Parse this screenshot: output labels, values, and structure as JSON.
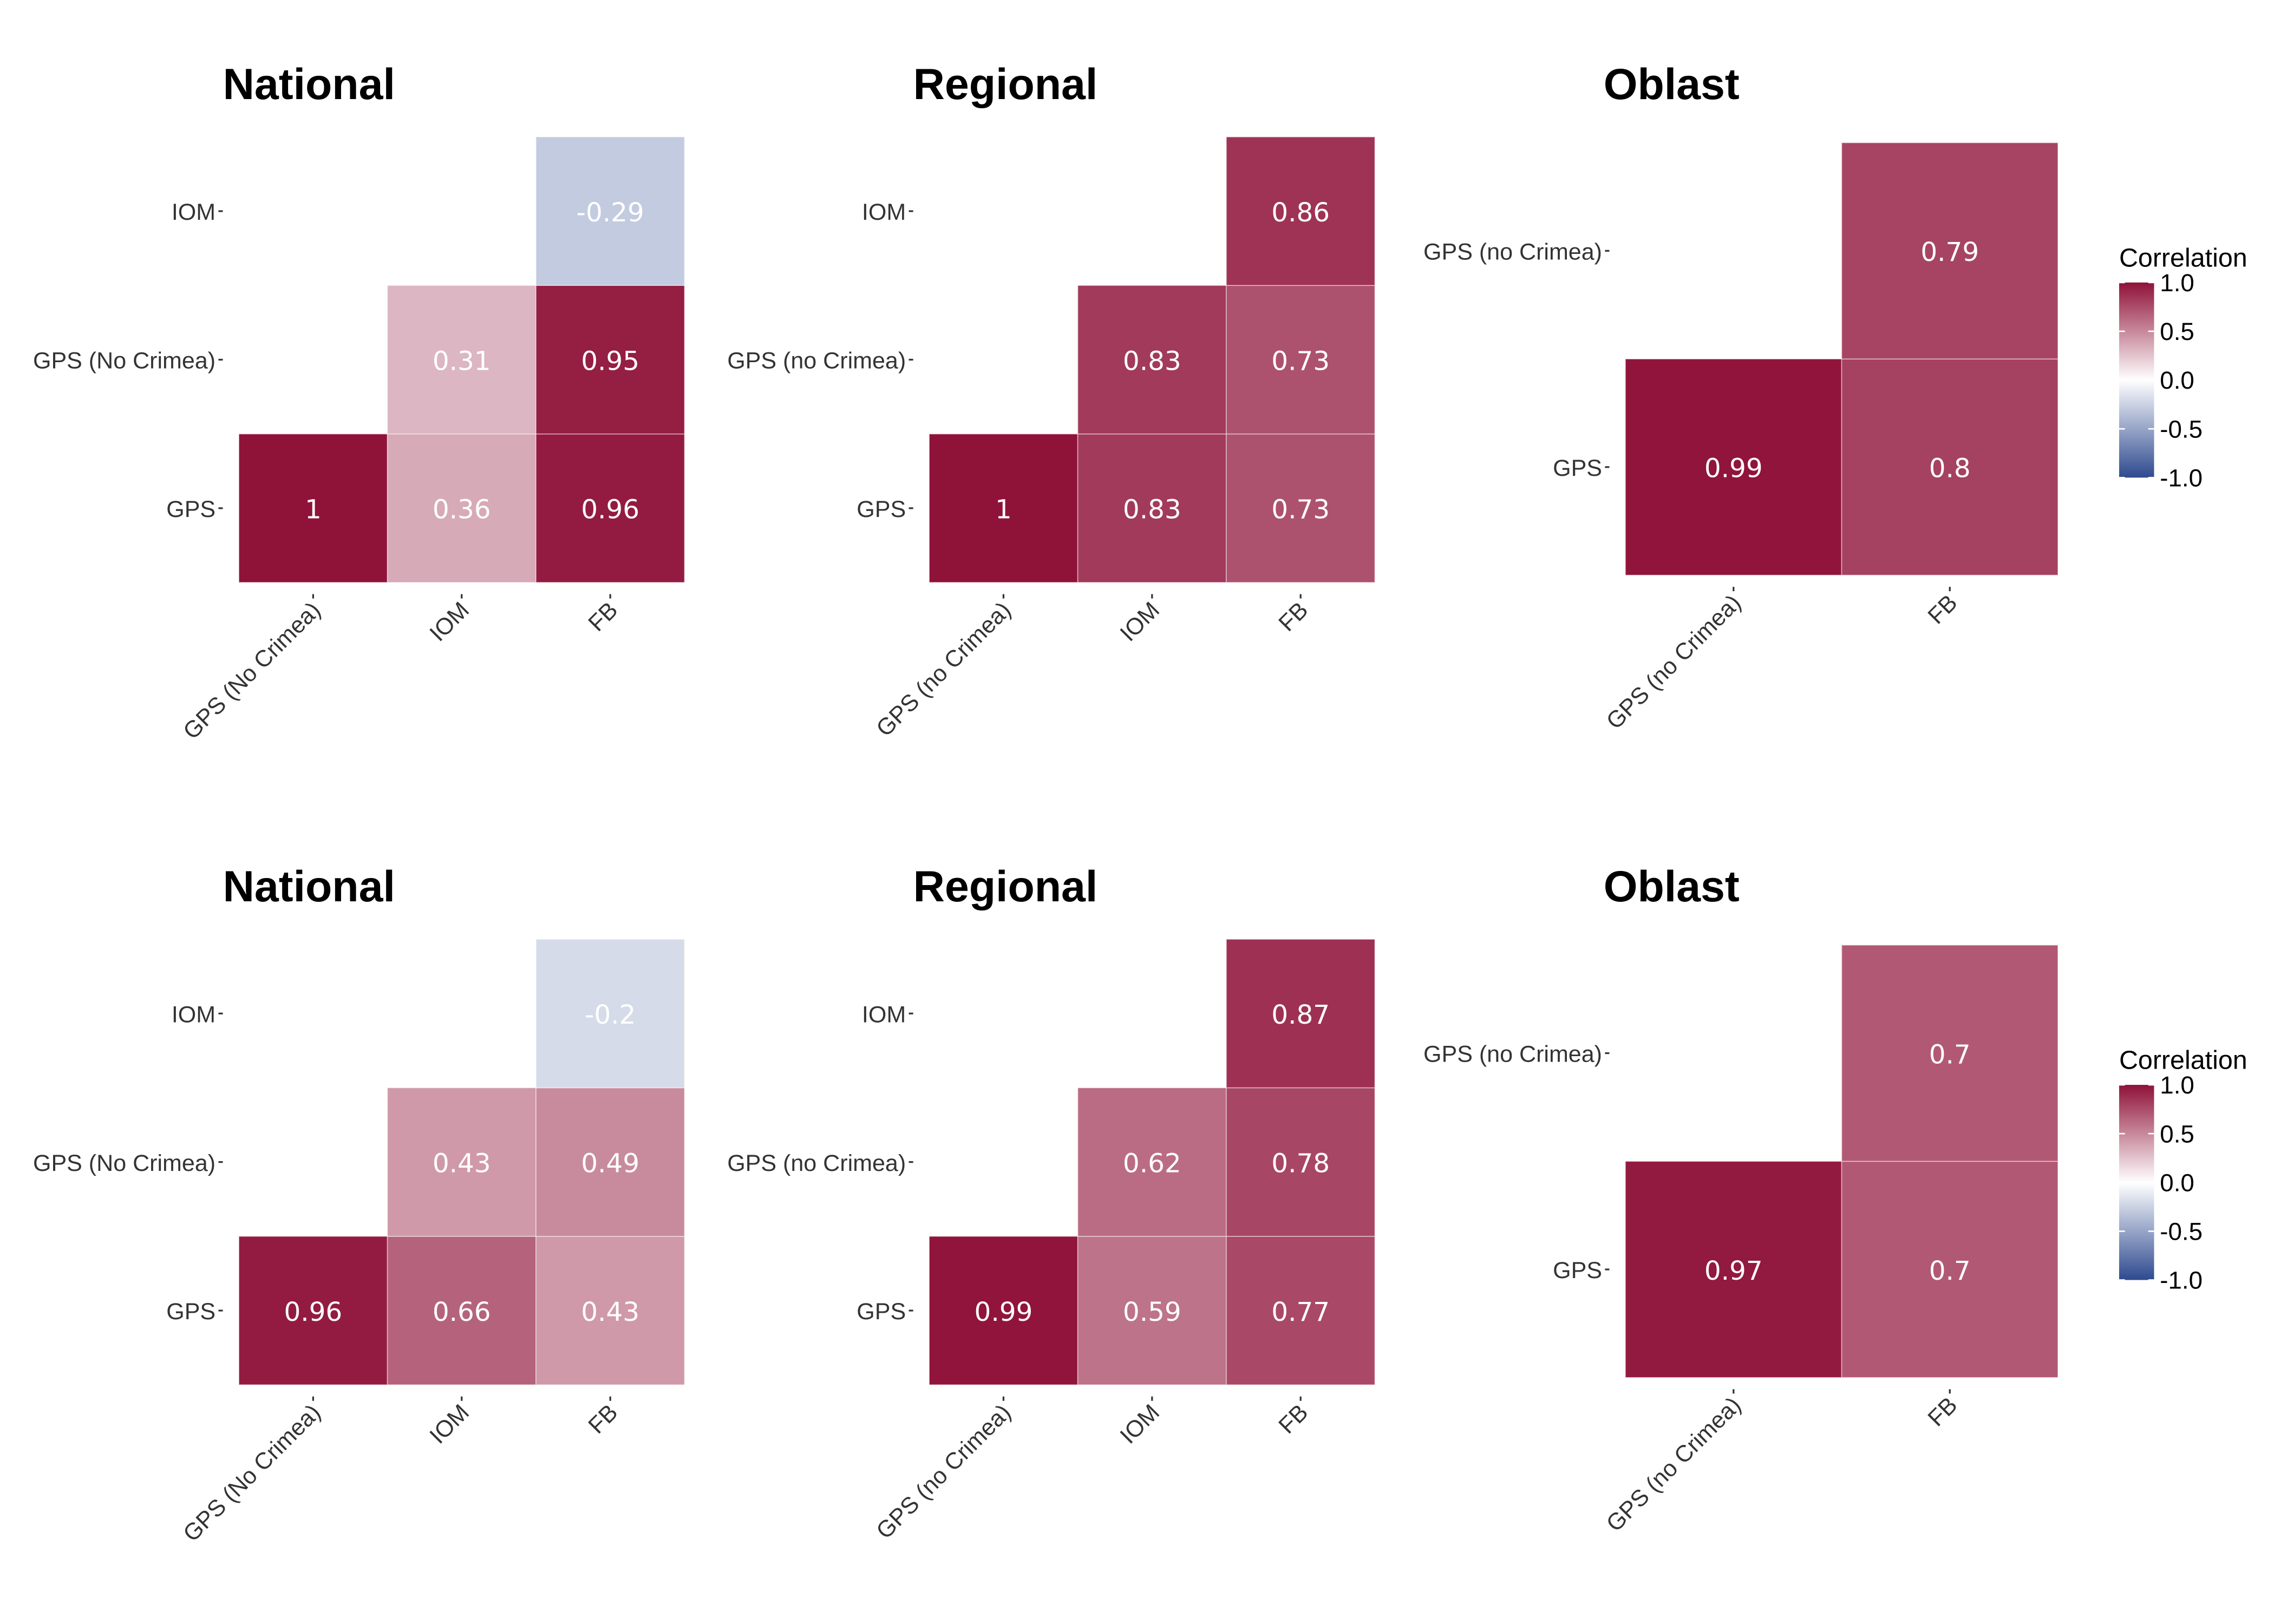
{
  "chart_data": [
    {
      "type": "heatmap",
      "title": "National",
      "x_categories": [
        "GPS (No Crimea)",
        "IOM",
        "FB"
      ],
      "y_categories": [
        "GPS",
        "GPS (No  Crimea)",
        "IOM"
      ],
      "cells": [
        {
          "x": "GPS (No Crimea)",
          "y": "GPS",
          "value": 1,
          "label": "1"
        },
        {
          "x": "IOM",
          "y": "GPS",
          "value": 0.36,
          "label": "0.36"
        },
        {
          "x": "FB",
          "y": "GPS",
          "value": 0.96,
          "label": "0.96"
        },
        {
          "x": "IOM",
          "y": "GPS (No  Crimea)",
          "value": 0.31,
          "label": "0.31"
        },
        {
          "x": "FB",
          "y": "GPS (No  Crimea)",
          "value": 0.95,
          "label": "0.95"
        },
        {
          "x": "FB",
          "y": "IOM",
          "value": -0.29,
          "label": "-0.29"
        }
      ]
    },
    {
      "type": "heatmap",
      "title": "Regional",
      "x_categories": [
        "GPS (no Crimea)",
        "IOM",
        "FB"
      ],
      "y_categories": [
        "GPS",
        "GPS (no Crimea)",
        "IOM"
      ],
      "cells": [
        {
          "x": "GPS (no Crimea)",
          "y": "GPS",
          "value": 1,
          "label": "1"
        },
        {
          "x": "IOM",
          "y": "GPS",
          "value": 0.83,
          "label": "0.83"
        },
        {
          "x": "FB",
          "y": "GPS",
          "value": 0.73,
          "label": "0.73"
        },
        {
          "x": "IOM",
          "y": "GPS (no Crimea)",
          "value": 0.83,
          "label": "0.83"
        },
        {
          "x": "FB",
          "y": "GPS (no Crimea)",
          "value": 0.73,
          "label": "0.73"
        },
        {
          "x": "FB",
          "y": "IOM",
          "value": 0.86,
          "label": "0.86"
        }
      ]
    },
    {
      "type": "heatmap",
      "title": "Oblast",
      "x_categories": [
        "GPS (no Crimea)",
        "FB"
      ],
      "y_categories": [
        "GPS",
        "GPS (no Crimea)"
      ],
      "cells": [
        {
          "x": "GPS (no Crimea)",
          "y": "GPS",
          "value": 0.99,
          "label": "0.99"
        },
        {
          "x": "FB",
          "y": "GPS",
          "value": 0.8,
          "label": "0.8"
        },
        {
          "x": "FB",
          "y": "GPS (no Crimea)",
          "value": 0.79,
          "label": "0.79"
        }
      ],
      "legend": {
        "title": "Correlation",
        "ticks": [
          "1.0",
          "0.5",
          "0.0",
          "-0.5",
          "-1.0"
        ],
        "placement": "right"
      }
    },
    {
      "type": "heatmap",
      "title": "National",
      "x_categories": [
        "GPS (No Crimea)",
        "IOM",
        "FB"
      ],
      "y_categories": [
        "GPS",
        "GPS (No  Crimea)",
        "IOM"
      ],
      "cells": [
        {
          "x": "GPS (No Crimea)",
          "y": "GPS",
          "value": 0.96,
          "label": "0.96"
        },
        {
          "x": "IOM",
          "y": "GPS",
          "value": 0.66,
          "label": "0.66"
        },
        {
          "x": "FB",
          "y": "GPS",
          "value": 0.43,
          "label": "0.43"
        },
        {
          "x": "IOM",
          "y": "GPS (No  Crimea)",
          "value": 0.43,
          "label": "0.43"
        },
        {
          "x": "FB",
          "y": "GPS (No  Crimea)",
          "value": 0.49,
          "label": "0.49"
        },
        {
          "x": "FB",
          "y": "IOM",
          "value": -0.2,
          "label": "-0.2"
        }
      ]
    },
    {
      "type": "heatmap",
      "title": "Regional",
      "x_categories": [
        "GPS (no Crimea)",
        "IOM",
        "FB"
      ],
      "y_categories": [
        "GPS",
        "GPS (no Crimea)",
        "IOM"
      ],
      "cells": [
        {
          "x": "GPS (no Crimea)",
          "y": "GPS",
          "value": 0.99,
          "label": "0.99"
        },
        {
          "x": "IOM",
          "y": "GPS",
          "value": 0.59,
          "label": "0.59"
        },
        {
          "x": "FB",
          "y": "GPS",
          "value": 0.77,
          "label": "0.77"
        },
        {
          "x": "IOM",
          "y": "GPS (no Crimea)",
          "value": 0.62,
          "label": "0.62"
        },
        {
          "x": "FB",
          "y": "GPS (no Crimea)",
          "value": 0.78,
          "label": "0.78"
        },
        {
          "x": "FB",
          "y": "IOM",
          "value": 0.87,
          "label": "0.87"
        }
      ]
    },
    {
      "type": "heatmap",
      "title": "Oblast",
      "x_categories": [
        "GPS (no Crimea)",
        "FB"
      ],
      "y_categories": [
        "GPS",
        "GPS (no Crimea)"
      ],
      "cells": [
        {
          "x": "GPS (no Crimea)",
          "y": "GPS",
          "value": 0.97,
          "label": "0.97"
        },
        {
          "x": "FB",
          "y": "GPS",
          "value": 0.7,
          "label": "0.7"
        },
        {
          "x": "FB",
          "y": "GPS (no Crimea)",
          "value": 0.7,
          "label": "0.7"
        }
      ],
      "legend": {
        "title": "Correlation",
        "ticks": [
          "1.0",
          "0.5",
          "0.0",
          "-0.5",
          "-1.0"
        ],
        "placement": "right"
      }
    }
  ],
  "color_scale": {
    "low": "#2e4a8f",
    "mid": "#ffffff",
    "high": "#8f1239",
    "domain": [
      -1,
      1
    ]
  }
}
